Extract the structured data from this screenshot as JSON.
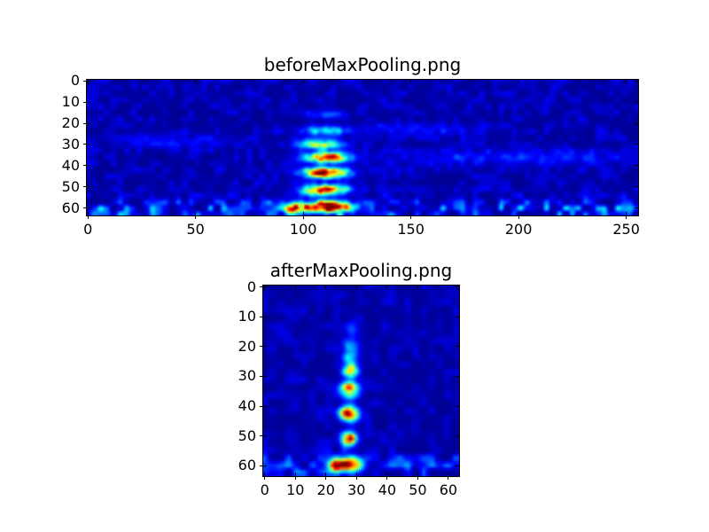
{
  "figure": {
    "background": "#ffffff",
    "text_color": "#000000",
    "axis_color": "#000000"
  },
  "chart_data": [
    {
      "type": "heatmap",
      "title": "beforeMaxPooling.png",
      "xlabel": "",
      "ylabel": "",
      "colormap": "jet",
      "background_value_color": "#000084",
      "grid": {
        "cols": 256,
        "rows": 64
      },
      "xlim": [
        -0.5,
        255.5
      ],
      "ylim": [
        63.5,
        -0.5
      ],
      "xticks": [
        0,
        50,
        100,
        150,
        200,
        250
      ],
      "yticks": [
        0,
        10,
        20,
        30,
        40,
        50,
        60
      ],
      "base": 0.02,
      "noise": {
        "seed": 1234,
        "mod_seed": 99,
        "scale": 3.0,
        "amp": 0.07,
        "bottom_band": {
          "row": 61,
          "sigma": 3.5,
          "amp": 0.2
        }
      },
      "blobs": [
        {
          "x": 110,
          "row": 16,
          "sx": 6,
          "sy": 1.4,
          "i": 0.16
        },
        {
          "x": 110,
          "row": 23.5,
          "sx": 7,
          "sy": 1.5,
          "i": 0.32
        },
        {
          "x": 108,
          "row": 30,
          "sx": 7,
          "sy": 1.6,
          "i": 0.5
        },
        {
          "x": 111,
          "row": 36,
          "sx": 7,
          "sy": 1.7,
          "i": 0.85
        },
        {
          "x": 110,
          "row": 43.5,
          "sx": 7,
          "sy": 1.7,
          "i": 0.9
        },
        {
          "x": 110,
          "row": 51.5,
          "sx": 7,
          "sy": 1.7,
          "i": 0.85
        },
        {
          "x": 110,
          "row": 59.5,
          "sx": 9,
          "sy": 1.8,
          "i": 1.0
        },
        {
          "x": 96,
          "row": 60.5,
          "sx": 2.5,
          "sy": 1.5,
          "i": 0.55
        },
        {
          "x": 200,
          "row": 36,
          "sx": 45,
          "sy": 2.5,
          "i": 0.1
        },
        {
          "x": 150,
          "row": 23,
          "sx": 25,
          "sy": 2.0,
          "i": 0.08
        },
        {
          "x": 40,
          "row": 28,
          "sx": 20,
          "sy": 2.5,
          "i": 0.07
        }
      ]
    },
    {
      "type": "heatmap",
      "title": "afterMaxPooling.png",
      "xlabel": "",
      "ylabel": "",
      "colormap": "jet",
      "background_value_color": "#000084",
      "grid": {
        "cols": 64,
        "rows": 64
      },
      "xlim": [
        -0.5,
        63.5
      ],
      "ylim": [
        63.5,
        -0.5
      ],
      "xticks": [
        0,
        10,
        20,
        30,
        40,
        50,
        60
      ],
      "yticks": [
        0,
        10,
        20,
        30,
        40,
        50,
        60
      ],
      "base": 0.02,
      "noise": {
        "seed": 555,
        "mod_seed": 77,
        "scale": 2.6,
        "amp": 0.06,
        "bottom_band": {
          "row": 60.5,
          "sigma": 3.0,
          "amp": 0.16
        }
      },
      "blobs": [
        {
          "x": 28,
          "row": 14,
          "sx": 1.6,
          "sy": 1.5,
          "i": 0.15
        },
        {
          "x": 29,
          "row": 17,
          "sx": 1.5,
          "sy": 4.0,
          "i": 0.1
        },
        {
          "x": 28,
          "row": 20,
          "sx": 1.7,
          "sy": 1.5,
          "i": 0.22
        },
        {
          "x": 28,
          "row": 24,
          "sx": 1.7,
          "sy": 1.4,
          "i": 0.3
        },
        {
          "x": 28,
          "row": 28,
          "sx": 1.8,
          "sy": 1.6,
          "i": 0.55
        },
        {
          "x": 27.5,
          "row": 34.5,
          "sx": 1.9,
          "sy": 1.7,
          "i": 0.85
        },
        {
          "x": 27.5,
          "row": 42.5,
          "sx": 1.9,
          "sy": 1.7,
          "i": 1.0
        },
        {
          "x": 27.5,
          "row": 51,
          "sx": 1.8,
          "sy": 1.6,
          "i": 0.85
        },
        {
          "x": 27,
          "row": 59.5,
          "sx": 3.2,
          "sy": 1.6,
          "i": 0.9
        },
        {
          "x": 23,
          "row": 60,
          "sx": 1.5,
          "sy": 1.2,
          "i": 0.5
        }
      ]
    }
  ]
}
